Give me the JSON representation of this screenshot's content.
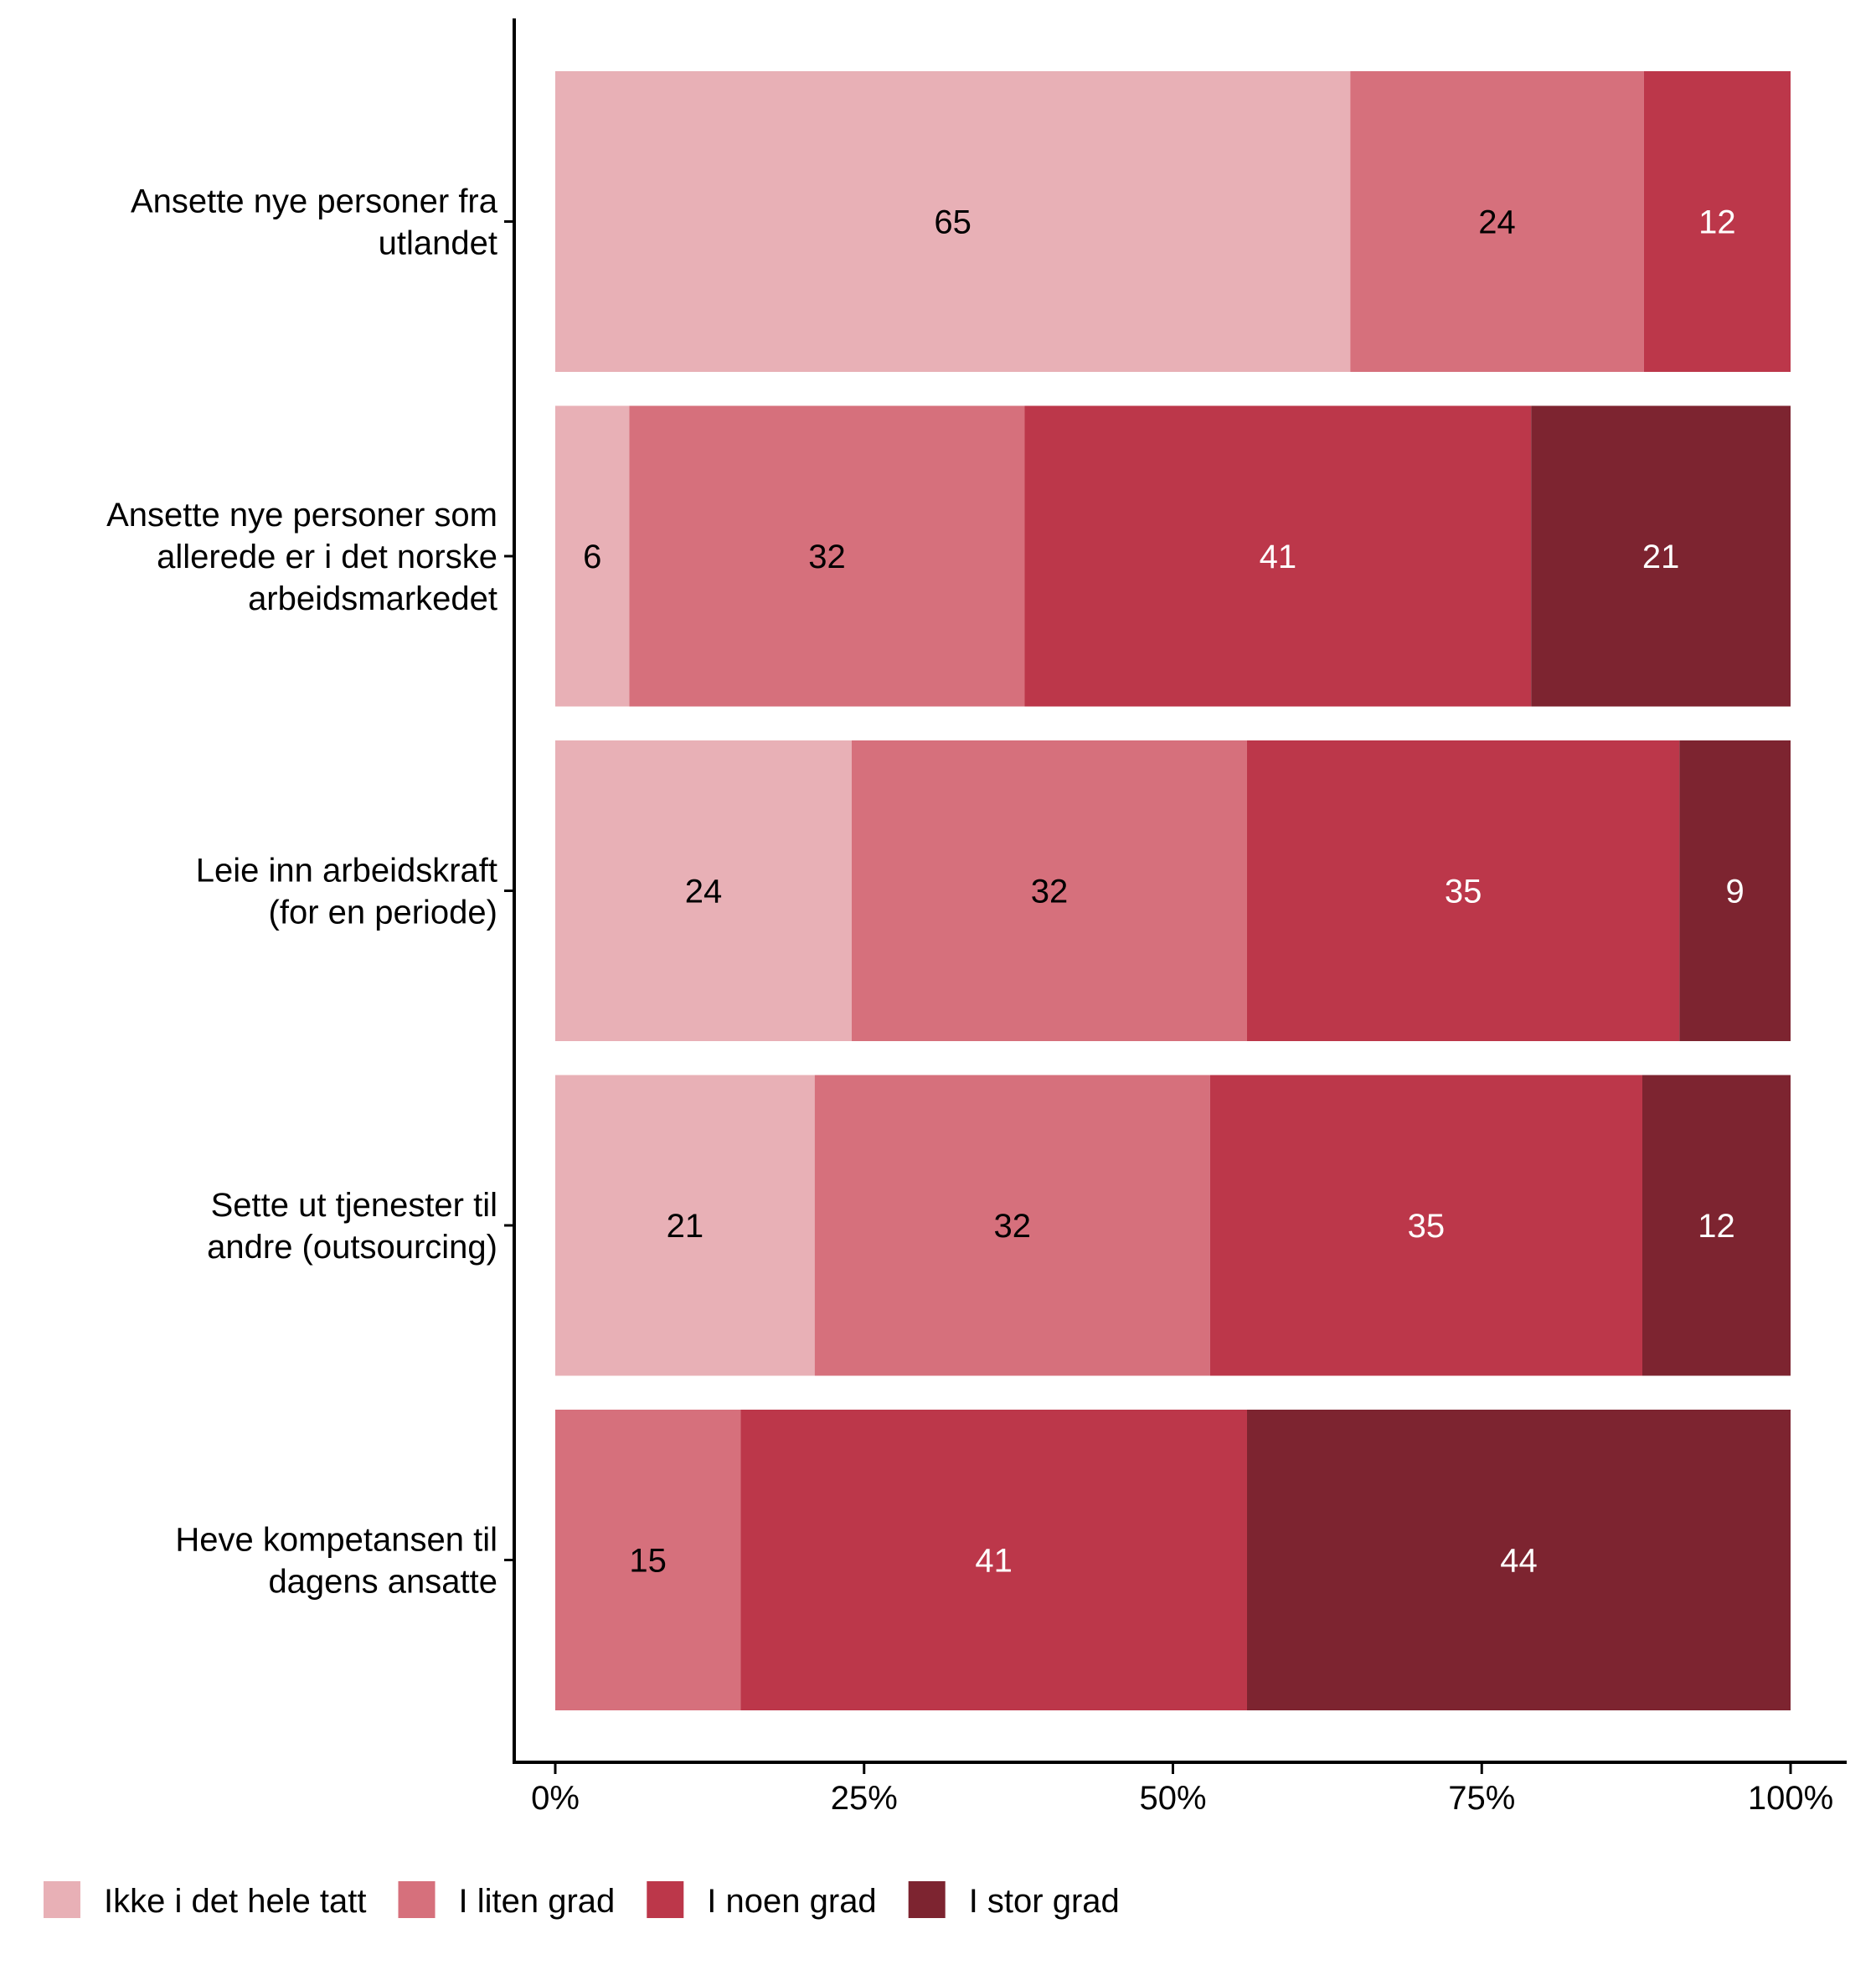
{
  "chart_data": {
    "type": "bar",
    "orientation": "horizontal",
    "stacked": true,
    "percent": true,
    "categories": [
      [
        "Ansette nye personer fra",
        "utlandet"
      ],
      [
        "Ansette nye personer som",
        "allerede er i det norske",
        "arbeidsmarkedet"
      ],
      [
        "Leie inn arbeidskraft",
        "(for en periode)"
      ],
      [
        "Sette ut tjenester til",
        "andre (outsourcing)"
      ],
      [
        "Heve kompetansen til",
        "dagens ansatte"
      ]
    ],
    "series": [
      {
        "name": "Ikke i det hele tatt",
        "color": "#E8B0B6",
        "label_color": "#000000",
        "values": [
          65,
          6,
          24,
          21,
          0
        ]
      },
      {
        "name": "I liten grad",
        "color": "#D6707C",
        "label_color": "#000000",
        "values": [
          24,
          32,
          32,
          32,
          15
        ]
      },
      {
        "name": "I noen grad",
        "color": "#BC374A",
        "label_color": "#FFFFFF",
        "values": [
          12,
          41,
          35,
          35,
          41
        ]
      },
      {
        "name": "I stor grad",
        "color": "#7D2430",
        "label_color": "#FFFFFF",
        "values": [
          0,
          21,
          9,
          12,
          44
        ]
      }
    ],
    "xticks": [
      "0%",
      "25%",
      "50%",
      "75%",
      "100%"
    ],
    "xlim": [
      0,
      100
    ],
    "title": "",
    "xlabel": "",
    "ylabel": "",
    "legend_position": "bottom-left",
    "grid": false
  }
}
